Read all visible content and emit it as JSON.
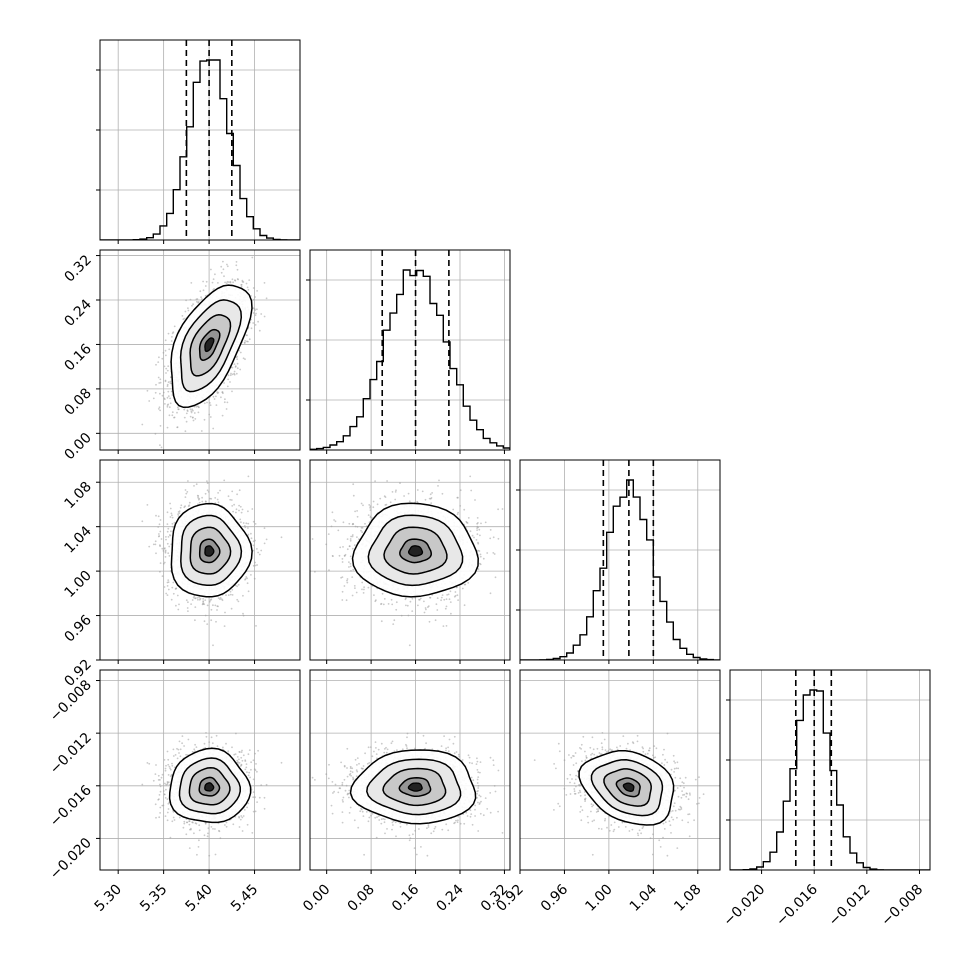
{
  "chart_data": {
    "type": "corner",
    "parameters": [
      {
        "id": "p0",
        "range": [
          5.28,
          5.5
        ],
        "ticks": [
          "5.30",
          "5.35",
          "5.40",
          "5.45"
        ],
        "tick_values": [
          5.3,
          5.35,
          5.4,
          5.45
        ],
        "quantiles": [
          5.375,
          5.4,
          5.425
        ],
        "mean": 5.4,
        "sd": 0.022
      },
      {
        "id": "p1",
        "range": [
          -0.03,
          0.33
        ],
        "ticks": [
          "0.00",
          "0.08",
          "0.16",
          "0.24",
          "0.32"
        ],
        "tick_values": [
          0.0,
          0.08,
          0.16,
          0.24,
          0.32
        ],
        "quantiles": [
          0.1,
          0.16,
          0.22
        ],
        "mean": 0.16,
        "sd": 0.055
      },
      {
        "id": "p2",
        "range": [
          0.92,
          1.1
        ],
        "ticks": [
          "0.92",
          "0.96",
          "1.00",
          "1.04",
          "1.08"
        ],
        "tick_values": [
          0.92,
          0.96,
          1.0,
          1.04,
          1.08
        ],
        "quantiles": [
          0.995,
          1.018,
          1.04
        ],
        "mean": 1.018,
        "sd": 0.021
      },
      {
        "id": "p3",
        "range": [
          -0.0224,
          -0.0072
        ],
        "ticks": [
          "−0.020",
          "−0.016",
          "−0.012",
          "−0.008"
        ],
        "tick_values": [
          -0.02,
          -0.016,
          -0.012,
          -0.008
        ],
        "quantiles": [
          -0.0174,
          -0.016,
          -0.0147
        ],
        "mean": -0.0161,
        "sd": 0.0014
      }
    ],
    "hist_bins": 30,
    "correlations": {
      "1-0": 0.55,
      "2-0": 0.0,
      "2-1": 0.0,
      "3-0": 0.0,
      "3-1": 0.0,
      "3-2": -0.25
    },
    "contour_levels_sigma": [
      0.5,
      1.0,
      1.5,
      2.0
    ],
    "grid": true,
    "colors": {
      "line": "#000000",
      "scatter": "#9e9e9e",
      "grid": "#b0b0b0"
    }
  }
}
